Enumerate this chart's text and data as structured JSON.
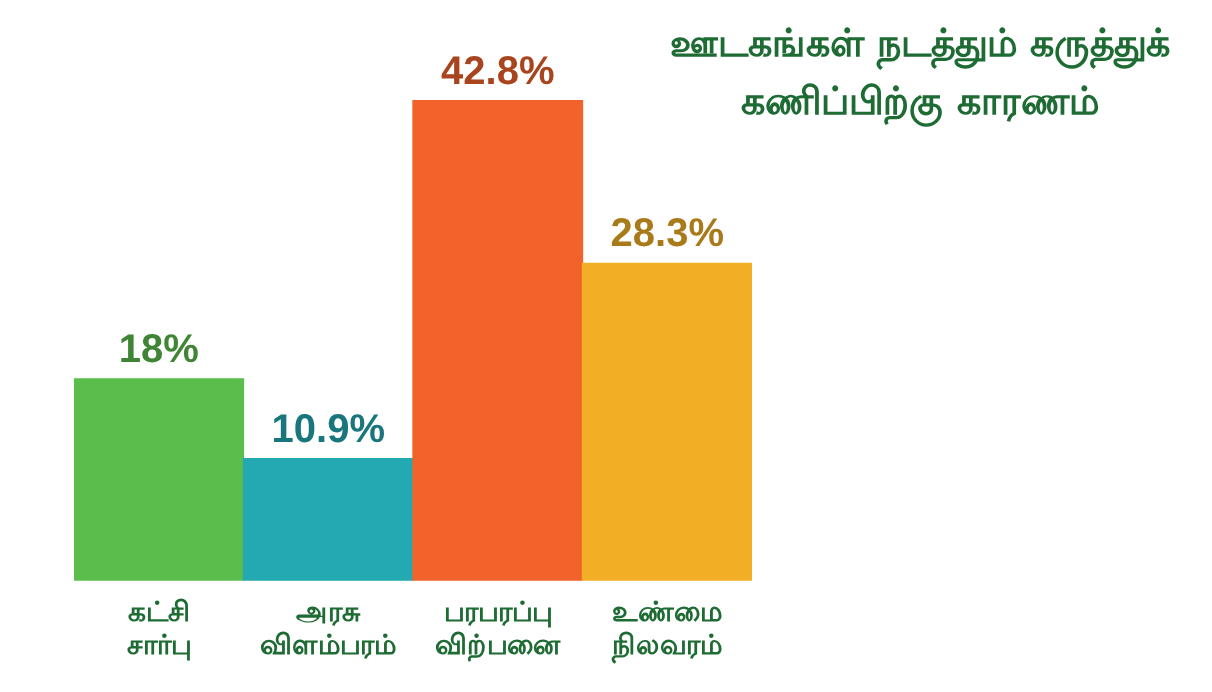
{
  "chart_data": {
    "type": "bar",
    "title": "ஊடகங்கள் நடத்தும் கருத்துக் கணிப்பிற்கு காரணம்",
    "categories": [
      "கட்சி சார்பு",
      "அரசு விளம்பரம்",
      "பரபரப்பு விற்பனை",
      "உண்மை நிலவரம்"
    ],
    "values": [
      18,
      10.9,
      42.8,
      28.3
    ],
    "value_labels": [
      "18%",
      "10.9%",
      "42.8%",
      "28.3%"
    ],
    "colors": [
      "#5bbd4b",
      "#22a9b1",
      "#f2622b",
      "#f2ae24"
    ],
    "grid": false
  }
}
